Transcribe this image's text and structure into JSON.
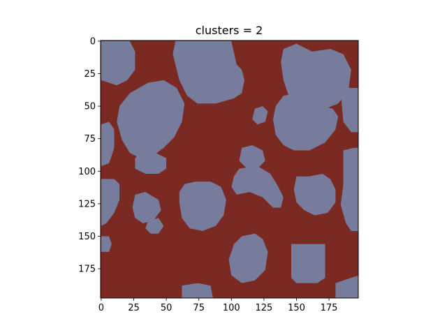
{
  "chart_data": {
    "type": "heatmap",
    "title": "clusters = 2",
    "xlabel": "",
    "ylabel": "",
    "image_size": [
      198,
      198
    ],
    "x_range": [
      -0.5,
      197.5
    ],
    "y_range": [
      197.5,
      -0.5
    ],
    "y_inverted": true,
    "x_ticks": [
      0,
      25,
      50,
      75,
      100,
      125,
      150,
      175
    ],
    "y_ticks": [
      0,
      25,
      50,
      75,
      100,
      125,
      150,
      175
    ],
    "x_tick_labels": [
      "0",
      "25",
      "50",
      "75",
      "100",
      "125",
      "150",
      "175"
    ],
    "y_tick_labels": [
      "0",
      "25",
      "50",
      "75",
      "100",
      "125",
      "150",
      "175"
    ],
    "grid": false,
    "legend": "none",
    "classes": [
      {
        "label": 0,
        "color": "#7a2a23"
      },
      {
        "label": 1,
        "color": "#787c9c"
      }
    ],
    "background_class": 0,
    "regions_class": 1,
    "regions": [
      {
        "shape": "polygon",
        "points": [
          [
            0,
            0
          ],
          [
            22,
            0
          ],
          [
            26,
            8
          ],
          [
            26,
            22
          ],
          [
            20,
            30
          ],
          [
            12,
            34
          ],
          [
            0,
            30
          ]
        ]
      },
      {
        "shape": "polygon",
        "points": [
          [
            57,
            0
          ],
          [
            100,
            0
          ],
          [
            104,
            18
          ],
          [
            108,
            22
          ],
          [
            110,
            30
          ],
          [
            108,
            40
          ],
          [
            102,
            44
          ],
          [
            88,
            48
          ],
          [
            74,
            48
          ],
          [
            66,
            42
          ],
          [
            60,
            30
          ],
          [
            55,
            10
          ]
        ]
      },
      {
        "shape": "polygon",
        "points": [
          [
            140,
            6
          ],
          [
            150,
            2
          ],
          [
            162,
            8
          ],
          [
            176,
            6
          ],
          [
            186,
            10
          ],
          [
            192,
            22
          ],
          [
            190,
            38
          ],
          [
            182,
            48
          ],
          [
            172,
            52
          ],
          [
            160,
            52
          ],
          [
            150,
            48
          ],
          [
            144,
            42
          ],
          [
            140,
            30
          ],
          [
            138,
            16
          ]
        ]
      },
      {
        "shape": "polygon",
        "points": [
          [
            36,
            32
          ],
          [
            48,
            30
          ],
          [
            58,
            36
          ],
          [
            64,
            48
          ],
          [
            62,
            62
          ],
          [
            56,
            74
          ],
          [
            48,
            82
          ],
          [
            40,
            88
          ],
          [
            30,
            90
          ],
          [
            22,
            86
          ],
          [
            16,
            76
          ],
          [
            12,
            62
          ],
          [
            14,
            50
          ],
          [
            22,
            40
          ]
        ]
      },
      {
        "shape": "polygon",
        "points": [
          [
            30,
            86
          ],
          [
            42,
            86
          ],
          [
            50,
            90
          ],
          [
            50,
            98
          ],
          [
            44,
            102
          ],
          [
            34,
            102
          ],
          [
            26,
            98
          ],
          [
            26,
            90
          ]
        ]
      },
      {
        "shape": "polygon",
        "points": [
          [
            0,
            64
          ],
          [
            6,
            62
          ],
          [
            10,
            68
          ],
          [
            10,
            82
          ],
          [
            6,
            94
          ],
          [
            0,
            96
          ]
        ]
      },
      {
        "shape": "polygon",
        "points": [
          [
            140,
            42
          ],
          [
            150,
            40
          ],
          [
            158,
            44
          ],
          [
            170,
            50
          ],
          [
            178,
            52
          ],
          [
            182,
            58
          ],
          [
            180,
            68
          ],
          [
            172,
            78
          ],
          [
            160,
            84
          ],
          [
            148,
            84
          ],
          [
            140,
            80
          ],
          [
            134,
            72
          ],
          [
            132,
            60
          ],
          [
            134,
            50
          ]
        ]
      },
      {
        "shape": "polygon",
        "points": [
          [
            184,
            40
          ],
          [
            190,
            36
          ],
          [
            198,
            36
          ],
          [
            198,
            70
          ],
          [
            192,
            70
          ],
          [
            186,
            62
          ]
        ]
      },
      {
        "shape": "polygon",
        "points": [
          [
            118,
            52
          ],
          [
            124,
            50
          ],
          [
            128,
            54
          ],
          [
            126,
            62
          ],
          [
            120,
            64
          ],
          [
            116,
            60
          ]
        ]
      },
      {
        "shape": "polygon",
        "points": [
          [
            108,
            82
          ],
          [
            116,
            80
          ],
          [
            124,
            84
          ],
          [
            126,
            92
          ],
          [
            120,
            98
          ],
          [
            112,
            98
          ],
          [
            106,
            92
          ]
        ]
      },
      {
        "shape": "polygon",
        "points": [
          [
            106,
            98
          ],
          [
            120,
            96
          ],
          [
            130,
            102
          ],
          [
            136,
            112
          ],
          [
            140,
            120
          ],
          [
            138,
            128
          ],
          [
            132,
            128
          ],
          [
            124,
            120
          ],
          [
            114,
            116
          ],
          [
            104,
            118
          ],
          [
            100,
            112
          ],
          [
            102,
            104
          ]
        ]
      },
      {
        "shape": "polygon",
        "points": [
          [
            150,
            104
          ],
          [
            160,
            104
          ],
          [
            170,
            102
          ],
          [
            176,
            106
          ],
          [
            180,
            114
          ],
          [
            180,
            124
          ],
          [
            174,
            132
          ],
          [
            164,
            134
          ],
          [
            156,
            130
          ],
          [
            150,
            124
          ],
          [
            148,
            114
          ]
        ]
      },
      {
        "shape": "polygon",
        "points": [
          [
            186,
            84
          ],
          [
            194,
            82
          ],
          [
            198,
            82
          ],
          [
            198,
            146
          ],
          [
            192,
            146
          ],
          [
            188,
            140
          ],
          [
            184,
            126
          ],
          [
            186,
            110
          ],
          [
            186,
            94
          ]
        ]
      },
      {
        "shape": "polygon",
        "points": [
          [
            64,
            110
          ],
          [
            72,
            108
          ],
          [
            84,
            108
          ],
          [
            92,
            112
          ],
          [
            96,
            122
          ],
          [
            94,
            134
          ],
          [
            88,
            142
          ],
          [
            78,
            146
          ],
          [
            68,
            144
          ],
          [
            62,
            136
          ],
          [
            60,
            124
          ],
          [
            60,
            116
          ]
        ]
      },
      {
        "shape": "polygon",
        "points": [
          [
            0,
            106
          ],
          [
            10,
            106
          ],
          [
            14,
            110
          ],
          [
            14,
            122
          ],
          [
            10,
            132
          ],
          [
            4,
            140
          ],
          [
            0,
            142
          ]
        ]
      },
      {
        "shape": "polygon",
        "points": [
          [
            26,
            118
          ],
          [
            34,
            116
          ],
          [
            44,
            122
          ],
          [
            46,
            130
          ],
          [
            40,
            138
          ],
          [
            32,
            140
          ],
          [
            26,
            136
          ],
          [
            24,
            128
          ]
        ]
      },
      {
        "shape": "polygon",
        "points": [
          [
            36,
            138
          ],
          [
            44,
            136
          ],
          [
            48,
            142
          ],
          [
            44,
            148
          ],
          [
            38,
            148
          ],
          [
            34,
            144
          ]
        ]
      },
      {
        "shape": "polygon",
        "points": [
          [
            0,
            150
          ],
          [
            6,
            150
          ],
          [
            8,
            156
          ],
          [
            6,
            162
          ],
          [
            0,
            162
          ]
        ]
      },
      {
        "shape": "polygon",
        "points": [
          [
            108,
            150
          ],
          [
            118,
            148
          ],
          [
            124,
            152
          ],
          [
            128,
            162
          ],
          [
            126,
            176
          ],
          [
            118,
            184
          ],
          [
            108,
            186
          ],
          [
            100,
            180
          ],
          [
            98,
            168
          ],
          [
            102,
            156
          ]
        ]
      },
      {
        "shape": "polygon",
        "points": [
          [
            146,
            156
          ],
          [
            172,
            156
          ],
          [
            172,
            182
          ],
          [
            166,
            186
          ],
          [
            150,
            186
          ],
          [
            146,
            182
          ]
        ]
      },
      {
        "shape": "polygon",
        "points": [
          [
            62,
            188
          ],
          [
            74,
            186
          ],
          [
            84,
            188
          ],
          [
            86,
            198
          ],
          [
            62,
            198
          ]
        ]
      },
      {
        "shape": "polygon",
        "points": [
          [
            180,
            186
          ],
          [
            198,
            180
          ],
          [
            198,
            198
          ],
          [
            180,
            198
          ]
        ]
      }
    ]
  }
}
